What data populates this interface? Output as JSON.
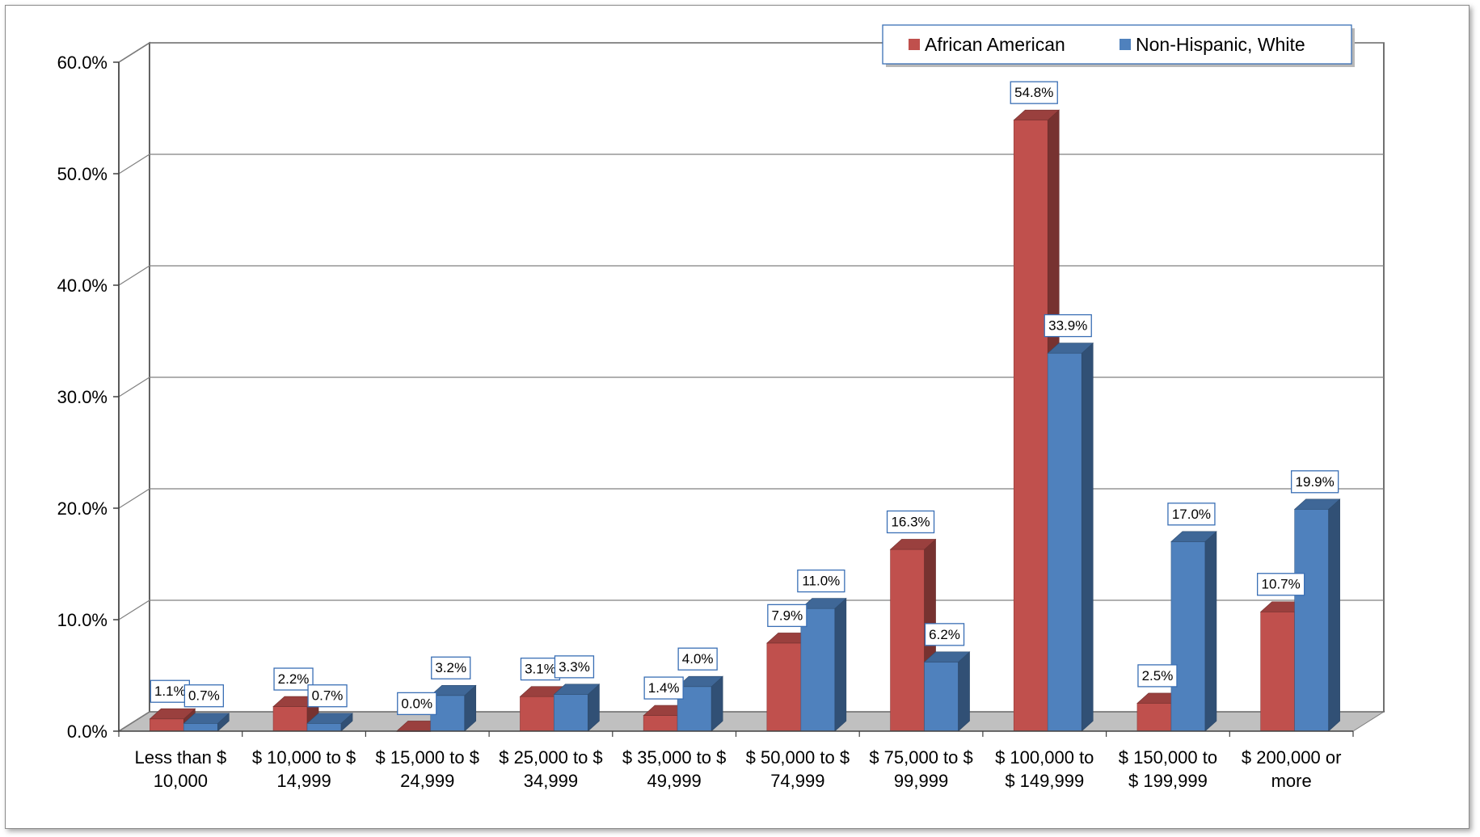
{
  "chart_data": {
    "type": "bar",
    "style": "3d-clustered-column",
    "categories": [
      [
        "Less than $",
        "10,000"
      ],
      [
        "$ 10,000 to $",
        "14,999"
      ],
      [
        "$ 15,000 to $",
        "24,999"
      ],
      [
        "$ 25,000 to $",
        "34,999"
      ],
      [
        "$ 35,000 to $",
        "49,999"
      ],
      [
        "$ 50,000 to $",
        "74,999"
      ],
      [
        "$ 75,000 to $",
        "99,999"
      ],
      [
        "$ 100,000 to",
        "$ 149,999"
      ],
      [
        "$ 150,000 to",
        "$ 199,999"
      ],
      [
        "$ 200,000 or",
        "more"
      ]
    ],
    "series": [
      {
        "name": "African American",
        "color": "#c0504d",
        "values": [
          1.1,
          2.2,
          0.0,
          3.1,
          1.4,
          7.9,
          16.3,
          54.8,
          2.5,
          10.7
        ],
        "labels": [
          "1.1%",
          "2.2%",
          "0.0%",
          "3.1%",
          "1.4%",
          "7.9%",
          "16.3%",
          "54.8%",
          "2.5%",
          "10.7%"
        ]
      },
      {
        "name": "Non-Hispanic, White",
        "color": "#4f81bd",
        "values": [
          0.7,
          0.7,
          3.2,
          3.3,
          4.0,
          11.0,
          6.2,
          33.9,
          17.0,
          19.9
        ],
        "labels": [
          "0.7%",
          "0.7%",
          "3.2%",
          "3.3%",
          "4.0%",
          "11.0%",
          "6.2%",
          "33.9%",
          "17.0%",
          "19.9%"
        ]
      }
    ],
    "y_ticks": [
      {
        "value": 0,
        "label": "0.0%"
      },
      {
        "value": 10,
        "label": "10.0%"
      },
      {
        "value": 20,
        "label": "20.0%"
      },
      {
        "value": 30,
        "label": "30.0%"
      },
      {
        "value": 40,
        "label": "40.0%"
      },
      {
        "value": 50,
        "label": "50.0%"
      },
      {
        "value": 60,
        "label": "60.0%"
      }
    ],
    "ylim": [
      0,
      60
    ],
    "title": "",
    "xlabel": "",
    "ylabel": "",
    "grid": true,
    "legend_position": "top-right",
    "data_labels": true
  }
}
